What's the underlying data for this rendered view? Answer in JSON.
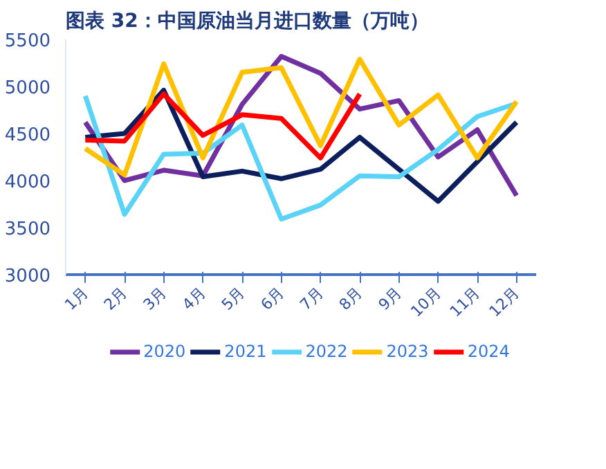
{
  "chart_data": {
    "type": "line",
    "title": "图表 32：中国原油当月进口数量（万吨）",
    "categories": [
      "1月",
      "2月",
      "3月",
      "4月",
      "5月",
      "6月",
      "7月",
      "8月",
      "9月",
      "10月",
      "11月",
      "12月"
    ],
    "series": [
      {
        "name": "2020",
        "color": "#7030a0",
        "values": [
          4620,
          4000,
          4110,
          4050,
          4810,
          5320,
          5140,
          4760,
          4850,
          4250,
          4540,
          3840
        ]
      },
      {
        "name": "2021",
        "color": "#0c1e5b",
        "values": [
          4460,
          4500,
          4960,
          4040,
          4100,
          4020,
          4120,
          4460,
          4120,
          3780,
          4200,
          4620
        ]
      },
      {
        "name": "2022",
        "color": "#5bd3f7",
        "values": [
          4900,
          3640,
          4280,
          4290,
          4590,
          3590,
          3740,
          4050,
          4040,
          4330,
          4680,
          4820
        ]
      },
      {
        "name": "2023",
        "color": "#ffc000",
        "values": [
          4340,
          4060,
          5240,
          4240,
          5150,
          5200,
          4370,
          5290,
          4590,
          4910,
          4240,
          4840
        ]
      },
      {
        "name": "2024",
        "color": "#ff0000",
        "values": [
          4430,
          4420,
          4920,
          4480,
          4700,
          4660,
          4240,
          4920,
          null,
          null,
          null,
          null
        ]
      }
    ],
    "ylim": [
      3000,
      5500
    ],
    "yticks": [
      3000,
      3500,
      4000,
      4500,
      5000,
      5500
    ],
    "grid": false,
    "legend": "bottom",
    "marker": "none",
    "line_style": "solid"
  }
}
